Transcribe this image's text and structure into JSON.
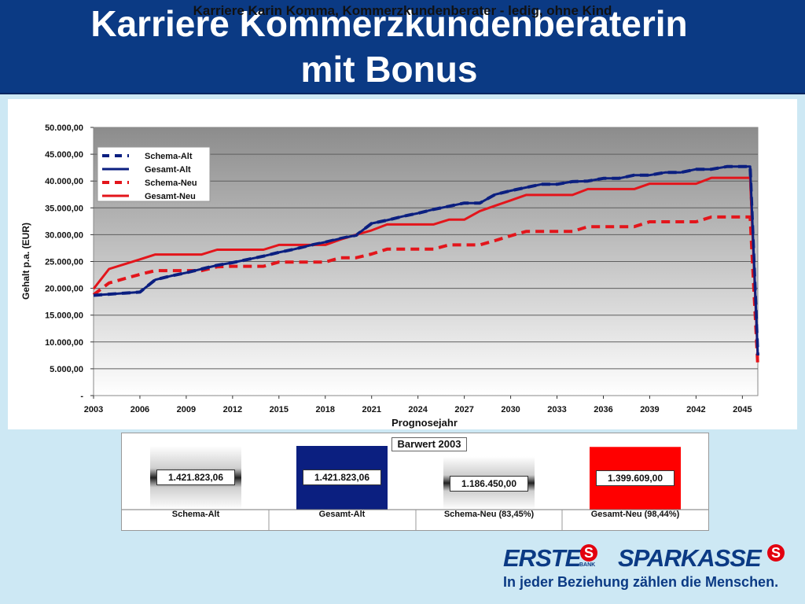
{
  "header": {
    "line1": "Karriere Kommerzkundenberaterin",
    "line2": "mit Bonus"
  },
  "colors": {
    "header_bg": "#0b3a84",
    "alt": "#0b1f80",
    "neu": "#e3151b",
    "background": "#cde8f4"
  },
  "chart_data": [
    {
      "type": "line",
      "title": "Karriere Karin Komma, Kommerzkundenberater - ledig, ohne Kind",
      "xlabel": "Prognosejahr",
      "ylabel": "Gehalt p.a. (EUR)",
      "xlim": [
        2003,
        2046
      ],
      "ylim": [
        0,
        50000
      ],
      "x_ticks": [
        "2003",
        "2006",
        "2009",
        "2012",
        "2015",
        "2018",
        "2021",
        "2024",
        "2027",
        "2030",
        "2033",
        "2036",
        "2039",
        "2042",
        "2045"
      ],
      "y_ticks": [
        "-",
        "5.000,00",
        "10.000,00",
        "15.000,00",
        "20.000,00",
        "25.000,00",
        "30.000,00",
        "35.000,00",
        "40.000,00",
        "45.000,00",
        "50.000,00"
      ],
      "grid": true,
      "legend_position": "top-left",
      "series": [
        {
          "name": "Schema-Alt",
          "style": "dashed",
          "color": "#0b1f80",
          "points": [
            [
              2003,
              18700
            ],
            [
              2004,
              18900
            ],
            [
              2005,
              19100
            ],
            [
              2006,
              19300
            ],
            [
              2007,
              21600
            ],
            [
              2008,
              22300
            ],
            [
              2009,
              22900
            ],
            [
              2010,
              23600
            ],
            [
              2011,
              24300
            ],
            [
              2012,
              24800
            ],
            [
              2013,
              25400
            ],
            [
              2014,
              26000
            ],
            [
              2015,
              26700
            ],
            [
              2016,
              27300
            ],
            [
              2017,
              28000
            ],
            [
              2018,
              28600
            ],
            [
              2019,
              29300
            ],
            [
              2020,
              29900
            ],
            [
              2021,
              32100
            ],
            [
              2022,
              32700
            ],
            [
              2023,
              33400
            ],
            [
              2024,
              34000
            ],
            [
              2025,
              34700
            ],
            [
              2026,
              35300
            ],
            [
              2027,
              35900
            ],
            [
              2028,
              35900
            ],
            [
              2029,
              37500
            ],
            [
              2030,
              38200
            ],
            [
              2031,
              38800
            ],
            [
              2032,
              39400
            ],
            [
              2033,
              39400
            ],
            [
              2034,
              39900
            ],
            [
              2035,
              40000
            ],
            [
              2036,
              40500
            ],
            [
              2037,
              40500
            ],
            [
              2038,
              41100
            ],
            [
              2039,
              41100
            ],
            [
              2040,
              41600
            ],
            [
              2041,
              41600
            ],
            [
              2042,
              42200
            ],
            [
              2043,
              42200
            ],
            [
              2044,
              42700
            ],
            [
              2045,
              42700
            ],
            [
              2045.5,
              42700
            ],
            [
              2046,
              7500
            ]
          ]
        },
        {
          "name": "Gesamt-Alt",
          "style": "solid",
          "color": "#0b1f80",
          "points": [
            [
              2003,
              18700
            ],
            [
              2004,
              18900
            ],
            [
              2005,
              19100
            ],
            [
              2006,
              19300
            ],
            [
              2007,
              21600
            ],
            [
              2008,
              22300
            ],
            [
              2009,
              22900
            ],
            [
              2010,
              23600
            ],
            [
              2011,
              24300
            ],
            [
              2012,
              24800
            ],
            [
              2013,
              25400
            ],
            [
              2014,
              26000
            ],
            [
              2015,
              26700
            ],
            [
              2016,
              27300
            ],
            [
              2017,
              28000
            ],
            [
              2018,
              28600
            ],
            [
              2019,
              29300
            ],
            [
              2020,
              29900
            ],
            [
              2021,
              32100
            ],
            [
              2022,
              32700
            ],
            [
              2023,
              33400
            ],
            [
              2024,
              34000
            ],
            [
              2025,
              34700
            ],
            [
              2026,
              35300
            ],
            [
              2027,
              35900
            ],
            [
              2028,
              35900
            ],
            [
              2029,
              37500
            ],
            [
              2030,
              38200
            ],
            [
              2031,
              38800
            ],
            [
              2032,
              39400
            ],
            [
              2033,
              39400
            ],
            [
              2034,
              39900
            ],
            [
              2035,
              40000
            ],
            [
              2036,
              40500
            ],
            [
              2037,
              40500
            ],
            [
              2038,
              41100
            ],
            [
              2039,
              41100
            ],
            [
              2040,
              41600
            ],
            [
              2041,
              41600
            ],
            [
              2042,
              42200
            ],
            [
              2043,
              42200
            ],
            [
              2044,
              42700
            ],
            [
              2045,
              42700
            ],
            [
              2045.5,
              42700
            ],
            [
              2046,
              7500
            ]
          ]
        },
        {
          "name": "Schema-Neu",
          "style": "dashed",
          "color": "#e3151b",
          "points": [
            [
              2003,
              18800
            ],
            [
              2004,
              21000
            ],
            [
              2005,
              21800
            ],
            [
              2006,
              22600
            ],
            [
              2007,
              23300
            ],
            [
              2008,
              23300
            ],
            [
              2009,
              23300
            ],
            [
              2010,
              23300
            ],
            [
              2011,
              24000
            ],
            [
              2012,
              24100
            ],
            [
              2013,
              24100
            ],
            [
              2014,
              24100
            ],
            [
              2015,
              24900
            ],
            [
              2016,
              24900
            ],
            [
              2017,
              24900
            ],
            [
              2018,
              24900
            ],
            [
              2019,
              25700
            ],
            [
              2020,
              25700
            ],
            [
              2021,
              26400
            ],
            [
              2022,
              27300
            ],
            [
              2023,
              27300
            ],
            [
              2024,
              27300
            ],
            [
              2025,
              27300
            ],
            [
              2026,
              28100
            ],
            [
              2027,
              28100
            ],
            [
              2028,
              28100
            ],
            [
              2029,
              28900
            ],
            [
              2030,
              29800
            ],
            [
              2031,
              30600
            ],
            [
              2032,
              30600
            ],
            [
              2033,
              30600
            ],
            [
              2034,
              30600
            ],
            [
              2035,
              31500
            ],
            [
              2036,
              31500
            ],
            [
              2037,
              31500
            ],
            [
              2038,
              31500
            ],
            [
              2039,
              32400
            ],
            [
              2040,
              32400
            ],
            [
              2041,
              32400
            ],
            [
              2042,
              32400
            ],
            [
              2043,
              33300
            ],
            [
              2044,
              33300
            ],
            [
              2045,
              33300
            ],
            [
              2045.5,
              33300
            ],
            [
              2046,
              5500
            ]
          ]
        },
        {
          "name": "Gesamt-Neu",
          "style": "solid",
          "color": "#e3151b",
          "points": [
            [
              2003,
              19900
            ],
            [
              2004,
              23600
            ],
            [
              2005,
              24500
            ],
            [
              2006,
              25400
            ],
            [
              2007,
              26300
            ],
            [
              2008,
              26300
            ],
            [
              2009,
              26300
            ],
            [
              2010,
              26300
            ],
            [
              2011,
              27200
            ],
            [
              2012,
              27200
            ],
            [
              2013,
              27200
            ],
            [
              2014,
              27200
            ],
            [
              2015,
              28100
            ],
            [
              2016,
              28100
            ],
            [
              2017,
              28100
            ],
            [
              2018,
              28100
            ],
            [
              2019,
              29100
            ],
            [
              2020,
              30000
            ],
            [
              2021,
              30800
            ],
            [
              2022,
              31900
            ],
            [
              2023,
              31900
            ],
            [
              2024,
              31900
            ],
            [
              2025,
              31900
            ],
            [
              2026,
              32800
            ],
            [
              2027,
              32800
            ],
            [
              2028,
              34400
            ],
            [
              2029,
              35400
            ],
            [
              2030,
              36400
            ],
            [
              2031,
              37400
            ],
            [
              2032,
              37400
            ],
            [
              2033,
              37400
            ],
            [
              2034,
              37400
            ],
            [
              2035,
              38500
            ],
            [
              2036,
              38500
            ],
            [
              2037,
              38500
            ],
            [
              2038,
              38500
            ],
            [
              2039,
              39500
            ],
            [
              2040,
              39500
            ],
            [
              2041,
              39500
            ],
            [
              2042,
              39500
            ],
            [
              2043,
              40600
            ],
            [
              2044,
              40600
            ],
            [
              2045,
              40600
            ],
            [
              2045.5,
              40600
            ],
            [
              2046,
              7000
            ]
          ]
        }
      ]
    },
    {
      "type": "bar",
      "title": "Barwert 2003",
      "categories": [
        "Schema-Alt",
        "Gesamt-Alt",
        "Schema-Neu (83,45%)",
        "Gesamt-Neu (98,44%)"
      ],
      "values": [
        1421823.06,
        1421823.06,
        1186450.0,
        1399609.0
      ],
      "value_labels": [
        "1.421.823,06",
        "1.421.823,06",
        "1.186.450,00",
        "1.399.609,00"
      ],
      "bar_colors": [
        "gradient-grey",
        "#0b1f80",
        "gradient-grey",
        "#ff0000"
      ],
      "ylim": [
        0,
        1421823.06
      ]
    }
  ],
  "logo": {
    "erste": "ERSTE",
    "bank": "BANK",
    "sparkasse": "SPARKASSE",
    "slogan": "In jeder Beziehung zählen die Menschen."
  }
}
